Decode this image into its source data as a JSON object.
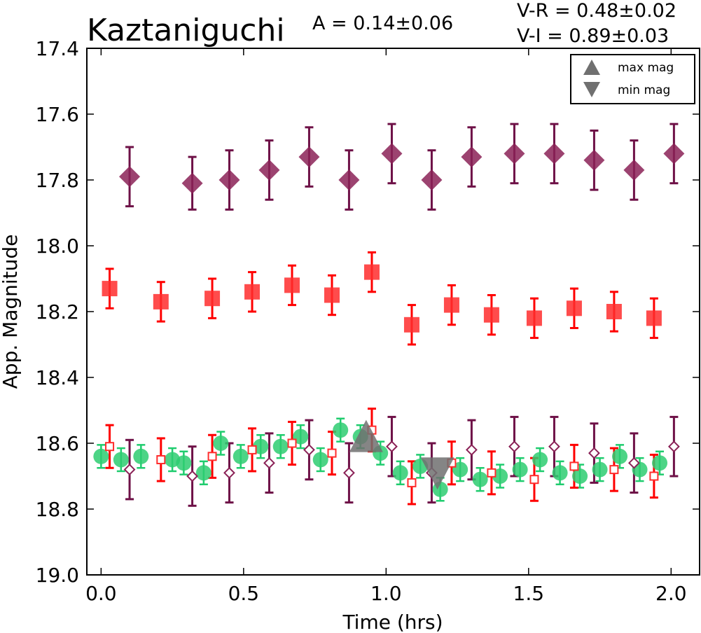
{
  "chart_data": {
    "type": "scatter",
    "title": "Kaztaniguchi",
    "amplitude_text": "A  = 0.14±0.06",
    "color_index_lines": [
      "V-R = 0.48±0.02",
      "V-I  = 0.89±0.03"
    ],
    "xlabel": "Time (hrs)",
    "ylabel": "App. Magnitude",
    "xlim": [
      -0.05,
      2.1
    ],
    "ylim": [
      19.0,
      17.4
    ],
    "y_inverted": true,
    "xticks": [
      "0.0",
      "0.5",
      "1.0",
      "1.5",
      "2.0"
    ],
    "yticks": [
      "17.4",
      "17.6",
      "17.8",
      "18.0",
      "18.2",
      "18.4",
      "18.6",
      "18.8",
      "19.0"
    ],
    "grid": false,
    "legend": {
      "position": "top-right",
      "entries": [
        "max mag",
        "min mag"
      ]
    },
    "colors": {
      "I": "#8b2257",
      "R": "#ff2d2d",
      "V": "#2ecc71",
      "marker": "#707070",
      "I_err": "#6e1147",
      "R_err": "#ff0000",
      "V_err": "#1fcc6e"
    },
    "series": [
      {
        "band": "I",
        "marker": "filled-diamond",
        "x": [
          0.1,
          0.32,
          0.45,
          0.59,
          0.73,
          0.87,
          1.02,
          1.16,
          1.3,
          1.45,
          1.59,
          1.73,
          1.87,
          2.01
        ],
        "y": [
          17.79,
          17.81,
          17.8,
          17.77,
          17.73,
          17.8,
          17.72,
          17.8,
          17.73,
          17.72,
          17.72,
          17.74,
          17.77,
          17.72
        ],
        "err": [
          0.09,
          0.08,
          0.09,
          0.09,
          0.09,
          0.09,
          0.09,
          0.09,
          0.09,
          0.09,
          0.09,
          0.09,
          0.09,
          0.09
        ]
      },
      {
        "band": "R",
        "marker": "filled-square",
        "x": [
          0.03,
          0.21,
          0.39,
          0.53,
          0.67,
          0.81,
          0.95,
          1.09,
          1.23,
          1.37,
          1.52,
          1.66,
          1.8,
          1.94
        ],
        "y": [
          18.13,
          18.17,
          18.16,
          18.14,
          18.12,
          18.15,
          18.08,
          18.24,
          18.18,
          18.21,
          18.22,
          18.19,
          18.2,
          18.22
        ],
        "err": [
          0.06,
          0.06,
          0.06,
          0.06,
          0.06,
          0.06,
          0.06,
          0.06,
          0.06,
          0.06,
          0.06,
          0.06,
          0.06,
          0.06
        ]
      },
      {
        "band": "V",
        "marker": "filled-circle",
        "x": [
          0.0,
          0.07,
          0.14,
          0.25,
          0.29,
          0.36,
          0.42,
          0.49,
          0.56,
          0.63,
          0.7,
          0.77,
          0.84,
          0.91,
          0.98,
          1.05,
          1.12,
          1.19,
          1.26,
          1.33,
          1.4,
          1.47,
          1.54,
          1.61,
          1.68,
          1.75,
          1.82,
          1.89,
          1.96
        ],
        "y": [
          18.64,
          18.65,
          18.64,
          18.65,
          18.66,
          18.69,
          18.6,
          18.64,
          18.61,
          18.61,
          18.58,
          18.65,
          18.56,
          18.58,
          18.63,
          18.69,
          18.67,
          18.74,
          18.68,
          18.71,
          18.7,
          18.68,
          18.65,
          18.69,
          18.7,
          18.68,
          18.64,
          18.68,
          18.66
        ],
        "err": [
          0.035,
          0.035,
          0.035,
          0.035,
          0.035,
          0.035,
          0.035,
          0.035,
          0.035,
          0.035,
          0.035,
          0.035,
          0.035,
          0.035,
          0.035,
          0.035,
          0.035,
          0.035,
          0.035,
          0.035,
          0.035,
          0.035,
          0.035,
          0.035,
          0.035,
          0.035,
          0.035,
          0.035,
          0.035
        ]
      },
      {
        "band": "I (V-shifted)",
        "marker": "open-diamond",
        "x": [
          0.1,
          0.32,
          0.45,
          0.59,
          0.73,
          0.87,
          1.02,
          1.16,
          1.3,
          1.45,
          1.59,
          1.73,
          1.87,
          2.01
        ],
        "y": [
          18.68,
          18.7,
          18.69,
          18.66,
          18.62,
          18.69,
          18.61,
          18.69,
          18.62,
          18.61,
          18.61,
          18.63,
          18.66,
          18.61
        ],
        "err": [
          0.09,
          0.09,
          0.09,
          0.09,
          0.09,
          0.09,
          0.09,
          0.09,
          0.09,
          0.09,
          0.09,
          0.09,
          0.09,
          0.09
        ]
      },
      {
        "band": "R (V-shifted)",
        "marker": "open-square",
        "x": [
          0.03,
          0.21,
          0.39,
          0.53,
          0.67,
          0.81,
          0.95,
          1.09,
          1.23,
          1.37,
          1.52,
          1.66,
          1.8,
          1.94
        ],
        "y": [
          18.61,
          18.65,
          18.64,
          18.62,
          18.6,
          18.63,
          18.56,
          18.72,
          18.66,
          18.69,
          18.71,
          18.67,
          18.68,
          18.7
        ],
        "err": [
          0.065,
          0.065,
          0.065,
          0.065,
          0.065,
          0.065,
          0.065,
          0.065,
          0.065,
          0.065,
          0.065,
          0.065,
          0.065,
          0.065
        ]
      }
    ],
    "markers": [
      {
        "label": "max mag",
        "shape": "triangle-up",
        "x": 0.93,
        "y": 18.58
      },
      {
        "label": "min mag",
        "shape": "triangle-down",
        "x": 1.18,
        "y": 18.69
      }
    ]
  }
}
